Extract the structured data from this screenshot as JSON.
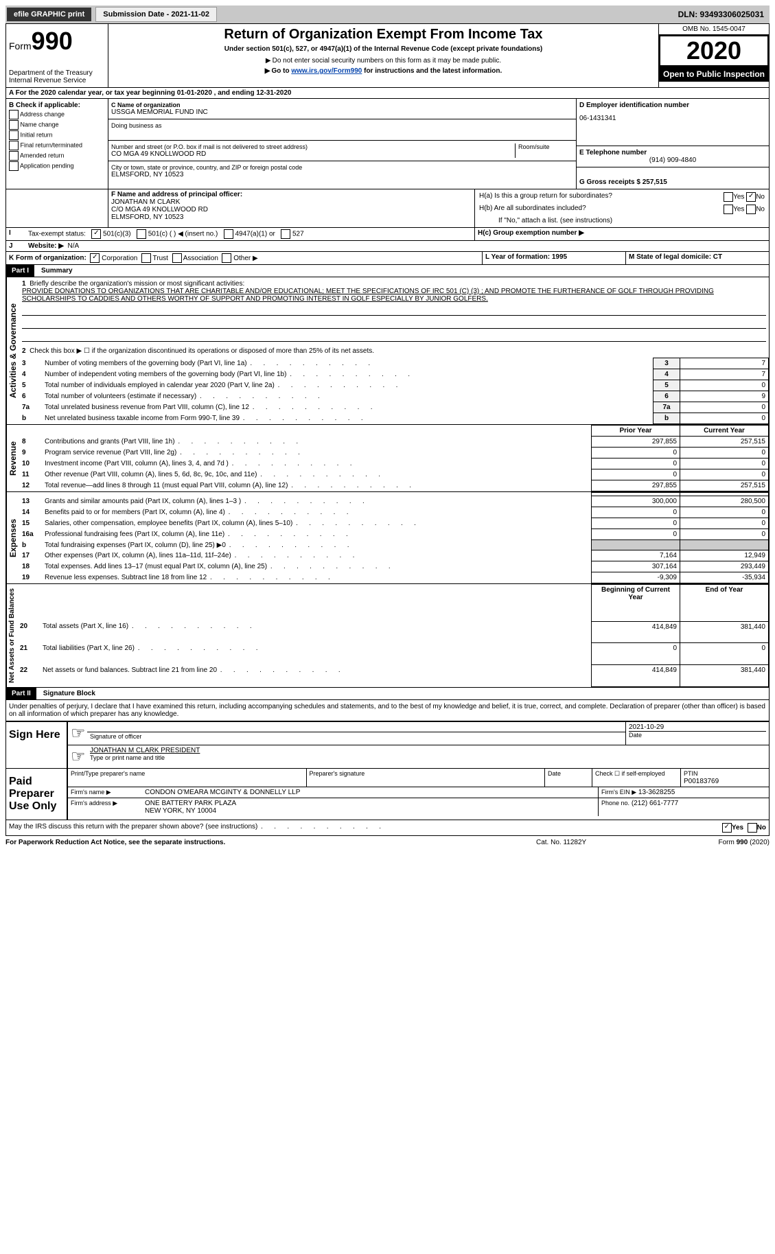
{
  "topbar": {
    "efile_label": "efile GRAPHIC print",
    "submission_label": "Submission Date - 2021-11-02",
    "dln_label": "DLN: 93493306025031"
  },
  "header": {
    "form_label": "Form",
    "form_number": "990",
    "dept": "Department of the Treasury",
    "irs": "Internal Revenue Service",
    "title": "Return of Organization Exempt From Income Tax",
    "subtitle": "Under section 501(c), 527, or 4947(a)(1) of the Internal Revenue Code (except private foundations)",
    "note1": "Do not enter social security numbers on this form as it may be made public.",
    "note2_pre": "Go to ",
    "note2_link": "www.irs.gov/Form990",
    "note2_post": " for instructions and the latest information.",
    "omb": "OMB No. 1545-0047",
    "year": "2020",
    "inspection": "Open to Public Inspection"
  },
  "lineA": "For the 2020 calendar year, or tax year beginning 01-01-2020   , and ending 12-31-2020",
  "boxB": {
    "header": "B Check if applicable:",
    "items": [
      "Address change",
      "Name change",
      "Initial return",
      "Final return/terminated",
      "Amended return",
      "Application pending"
    ]
  },
  "boxC": {
    "name_label": "C Name of organization",
    "name": "USSGA MEMORIAL FUND INC",
    "dba_label": "Doing business as",
    "street_label": "Number and street (or P.O. box if mail is not delivered to street address)",
    "street": "CO MGA 49 KNOLLWOOD RD",
    "room_label": "Room/suite",
    "city_label": "City or town, state or province, country, and ZIP or foreign postal code",
    "city": "ELMSFORD, NY  10523"
  },
  "boxD": {
    "label": "D Employer identification number",
    "value": "06-1431341"
  },
  "boxE": {
    "label": "E Telephone number",
    "value": "(914) 909-4840"
  },
  "boxG": {
    "label": "G Gross receipts $ 257,515"
  },
  "boxF": {
    "label": "F Name and address of principal officer:",
    "name": "JONATHAN M CLARK",
    "addr1": "C/O MGA 49 KNOLLWOOD RD",
    "addr2": "ELMSFORD, NY  10523"
  },
  "boxH": {
    "a_label": "H(a)  Is this a group return for subordinates?",
    "b_label": "H(b)  Are all subordinates included?",
    "note": "If \"No,\" attach a list. (see instructions)",
    "c_label": "H(c)  Group exemption number ▶",
    "yes": "Yes",
    "no": "No"
  },
  "lineI": {
    "label": "Tax-exempt status:",
    "opt1": "501(c)(3)",
    "opt2": "501(c) (  ) ◀ (insert no.)",
    "opt3": "4947(a)(1) or",
    "opt4": "527"
  },
  "lineJ": {
    "label": "Website: ▶",
    "value": "N/A"
  },
  "lineK": {
    "label": "K Form of organization:",
    "opts": [
      "Corporation",
      "Trust",
      "Association",
      "Other ▶"
    ]
  },
  "lineL": "L Year of formation: 1995",
  "lineM": "M State of legal domicile: CT",
  "part1": {
    "header": "Part I",
    "title": "Summary",
    "line1_label": "Briefly describe the organization's mission or most significant activities:",
    "line1_text": "PROVIDE DONATIONS TO ORGANIZATIONS THAT ARE CHARITABLE AND/OR EDUCATIONAL; MEET THE SPECIFICATIONS OF IRC 501 (C) (3) ; AND PROMOTE THE FURTHERANCE OF GOLF THROUGH PROVIDING SCHOLARSHIPS TO CADDIES AND OTHERS WORTHY OF SUPPORT AND PROMOTING INTEREST IN GOLF ESPECIALLY BY JUNIOR GOLFERS.",
    "line2": "Check this box ▶ ☐ if the organization discontinued its operations or disposed of more than 25% of its net assets.",
    "governance_label": "Activities & Governance",
    "revenue_label": "Revenue",
    "expenses_label": "Expenses",
    "netassets_label": "Net Assets or Fund Balances",
    "gov_rows": [
      {
        "n": "3",
        "label": "Number of voting members of the governing body (Part VI, line 1a)",
        "val": "7"
      },
      {
        "n": "4",
        "label": "Number of independent voting members of the governing body (Part VI, line 1b)",
        "val": "7"
      },
      {
        "n": "5",
        "label": "Total number of individuals employed in calendar year 2020 (Part V, line 2a)",
        "val": "0"
      },
      {
        "n": "6",
        "label": "Total number of volunteers (estimate if necessary)",
        "val": "9"
      },
      {
        "n": "7a",
        "label": "Total unrelated business revenue from Part VIII, column (C), line 12",
        "val": "0"
      },
      {
        "n": "b",
        "label": "Net unrelated business taxable income from Form 990-T, line 39",
        "val": "0"
      }
    ],
    "prior_year": "Prior Year",
    "current_year": "Current Year",
    "rev_rows": [
      {
        "n": "8",
        "label": "Contributions and grants (Part VIII, line 1h)",
        "prior": "297,855",
        "curr": "257,515"
      },
      {
        "n": "9",
        "label": "Program service revenue (Part VIII, line 2g)",
        "prior": "0",
        "curr": "0"
      },
      {
        "n": "10",
        "label": "Investment income (Part VIII, column (A), lines 3, 4, and 7d )",
        "prior": "0",
        "curr": "0"
      },
      {
        "n": "11",
        "label": "Other revenue (Part VIII, column (A), lines 5, 6d, 8c, 9c, 10c, and 11e)",
        "prior": "0",
        "curr": "0"
      },
      {
        "n": "12",
        "label": "Total revenue—add lines 8 through 11 (must equal Part VIII, column (A), line 12)",
        "prior": "297,855",
        "curr": "257,515"
      }
    ],
    "exp_rows": [
      {
        "n": "13",
        "label": "Grants and similar amounts paid (Part IX, column (A), lines 1–3 )",
        "prior": "300,000",
        "curr": "280,500"
      },
      {
        "n": "14",
        "label": "Benefits paid to or for members (Part IX, column (A), line 4)",
        "prior": "0",
        "curr": "0"
      },
      {
        "n": "15",
        "label": "Salaries, other compensation, employee benefits (Part IX, column (A), lines 5–10)",
        "prior": "0",
        "curr": "0"
      },
      {
        "n": "16a",
        "label": "Professional fundraising fees (Part IX, column (A), line 11e)",
        "prior": "0",
        "curr": "0"
      },
      {
        "n": "b",
        "label": "Total fundraising expenses (Part IX, column (D), line 25) ▶0",
        "prior": "",
        "curr": "",
        "shade": true
      },
      {
        "n": "17",
        "label": "Other expenses (Part IX, column (A), lines 11a–11d, 11f–24e)",
        "prior": "7,164",
        "curr": "12,949"
      },
      {
        "n": "18",
        "label": "Total expenses. Add lines 13–17 (must equal Part IX, column (A), line 25)",
        "prior": "307,164",
        "curr": "293,449"
      },
      {
        "n": "19",
        "label": "Revenue less expenses. Subtract line 18 from line 12",
        "prior": "-9,309",
        "curr": "-35,934"
      }
    ],
    "boy": "Beginning of Current Year",
    "eoy": "End of Year",
    "net_rows": [
      {
        "n": "20",
        "label": "Total assets (Part X, line 16)",
        "prior": "414,849",
        "curr": "381,440"
      },
      {
        "n": "21",
        "label": "Total liabilities (Part X, line 26)",
        "prior": "0",
        "curr": "0"
      },
      {
        "n": "22",
        "label": "Net assets or fund balances. Subtract line 21 from line 20",
        "prior": "414,849",
        "curr": "381,440"
      }
    ]
  },
  "part2": {
    "header": "Part II",
    "title": "Signature Block",
    "declaration": "Under penalties of perjury, I declare that I have examined this return, including accompanying schedules and statements, and to the best of my knowledge and belief, it is true, correct, and complete. Declaration of preparer (other than officer) is based on all information of which preparer has any knowledge.",
    "sign_here": "Sign Here",
    "sig_of_officer": "Signature of officer",
    "date_label": "Date",
    "sig_date": "2021-10-29",
    "officer_name": "JONATHAN M CLARK  PRESIDENT",
    "type_name_label": "Type or print name and title",
    "paid_prep": "Paid Preparer Use Only",
    "print_name_label": "Print/Type preparer's name",
    "prep_sig_label": "Preparer's signature",
    "check_self": "Check ☐ if self-employed",
    "ptin_label": "PTIN",
    "ptin": "P00183769",
    "firm_name_label": "Firm's name   ▶",
    "firm_name": "CONDON O'MEARA MCGINTY & DONNELLY LLP",
    "firm_ein_label": "Firm's EIN ▶",
    "firm_ein": "13-3628255",
    "firm_addr_label": "Firm's address ▶",
    "firm_addr1": "ONE BATTERY PARK PLAZA",
    "firm_addr2": "NEW YORK, NY  10004",
    "phone_label": "Phone no.",
    "phone": "(212) 661-7777",
    "discuss": "May the IRS discuss this return with the preparer shown above? (see instructions)"
  },
  "footer": {
    "paperwork": "For Paperwork Reduction Act Notice, see the separate instructions.",
    "cat": "Cat. No. 11282Y",
    "form": "Form 990 (2020)"
  }
}
